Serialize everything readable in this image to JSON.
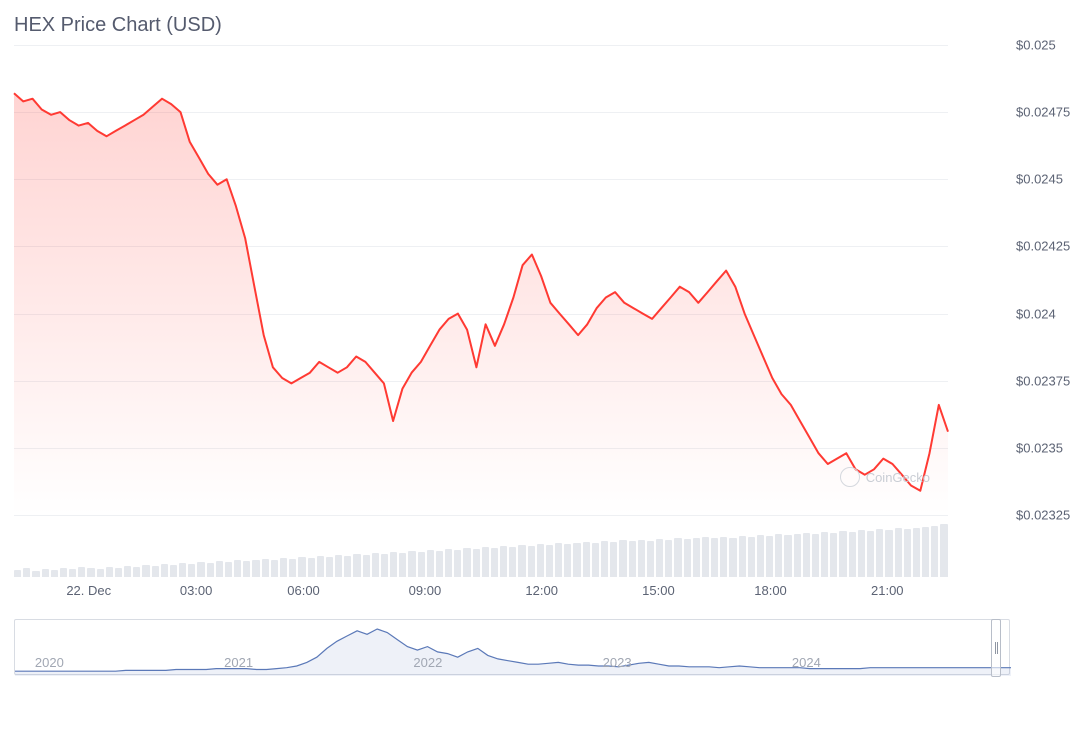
{
  "title": "HEX Price Chart (USD)",
  "watermark_text": "CoinGecko",
  "main_chart": {
    "type": "area",
    "line_color": "#ff3a33",
    "line_width": 2,
    "fill_top_color": "rgba(255,58,51,0.22)",
    "fill_bottom_color": "rgba(255,58,51,0.0)",
    "grid_color": "#eef0f3",
    "background_color": "#ffffff",
    "ylim": [
      0.02325,
      0.025
    ],
    "ytick_labels": [
      "$0.025",
      "$0.02475",
      "$0.0245",
      "$0.02425",
      "$0.024",
      "$0.02375",
      "$0.0235",
      "$0.02325"
    ],
    "ytick_values": [
      0.025,
      0.02475,
      0.0245,
      0.02425,
      0.024,
      0.02375,
      0.0235,
      0.02325
    ],
    "xtick_labels": [
      "22. Dec",
      "03:00",
      "06:00",
      "09:00",
      "12:00",
      "15:00",
      "18:00",
      "21:00"
    ],
    "xtick_positions": [
      0.08,
      0.195,
      0.31,
      0.44,
      0.565,
      0.69,
      0.81,
      0.935
    ],
    "series": [
      0.02482,
      0.02479,
      0.0248,
      0.02476,
      0.02474,
      0.02475,
      0.02472,
      0.0247,
      0.02471,
      0.02468,
      0.02466,
      0.02468,
      0.0247,
      0.02472,
      0.02474,
      0.02477,
      0.0248,
      0.02478,
      0.02475,
      0.02464,
      0.02458,
      0.02452,
      0.02448,
      0.0245,
      0.0244,
      0.02428,
      0.0241,
      0.02392,
      0.0238,
      0.02376,
      0.02374,
      0.02376,
      0.02378,
      0.02382,
      0.0238,
      0.02378,
      0.0238,
      0.02384,
      0.02382,
      0.02378,
      0.02374,
      0.0236,
      0.02372,
      0.02378,
      0.02382,
      0.02388,
      0.02394,
      0.02398,
      0.024,
      0.02394,
      0.0238,
      0.02396,
      0.02388,
      0.02396,
      0.02406,
      0.02418,
      0.02422,
      0.02414,
      0.02404,
      0.024,
      0.02396,
      0.02392,
      0.02396,
      0.02402,
      0.02406,
      0.02408,
      0.02404,
      0.02402,
      0.024,
      0.02398,
      0.02402,
      0.02406,
      0.0241,
      0.02408,
      0.02404,
      0.02408,
      0.02412,
      0.02416,
      0.0241,
      0.024,
      0.02392,
      0.02384,
      0.02376,
      0.0237,
      0.02366,
      0.0236,
      0.02354,
      0.02348,
      0.02344,
      0.02346,
      0.02348,
      0.02342,
      0.0234,
      0.02342,
      0.02346,
      0.02344,
      0.0234,
      0.02336,
      0.02334,
      0.02348,
      0.02366,
      0.02356
    ],
    "title_fontsize": 20,
    "label_fontsize": 13,
    "label_color": "#5c6374"
  },
  "volume_chart": {
    "type": "bar",
    "bar_color": "#e4e7ec",
    "values": [
      12,
      14,
      11,
      13,
      12,
      14,
      13,
      15,
      14,
      13,
      15,
      14,
      16,
      15,
      17,
      16,
      18,
      17,
      19,
      18,
      20,
      19,
      21,
      20,
      22,
      21,
      22,
      23,
      22,
      24,
      23,
      25,
      24,
      26,
      25,
      27,
      26,
      28,
      27,
      29,
      28,
      30,
      29,
      31,
      30,
      32,
      31,
      33,
      32,
      34,
      33,
      35,
      34,
      36,
      35,
      37,
      36,
      38,
      37,
      39,
      38,
      39,
      40,
      39,
      41,
      40,
      42,
      41,
      42,
      41,
      43,
      42,
      44,
      43,
      44,
      45,
      44,
      45,
      44,
      46,
      45,
      47,
      46,
      48,
      47,
      48,
      49,
      48,
      50,
      49,
      51,
      50,
      52,
      51,
      53,
      52,
      54,
      53,
      54,
      55,
      56,
      58
    ],
    "max_height_pct": 0.95,
    "min_height_pct": 0.1
  },
  "navigator": {
    "line_color": "#5b79b8",
    "years": [
      "2020",
      "2021",
      "2022",
      "2023",
      "2024"
    ],
    "year_positions": [
      0.02,
      0.21,
      0.4,
      0.59,
      0.78
    ],
    "handle_position": 0.985,
    "series": [
      2,
      2,
      2,
      2,
      2,
      2,
      2,
      2,
      2,
      2,
      2,
      3,
      3,
      3,
      3,
      3,
      4,
      4,
      4,
      4,
      5,
      5,
      5,
      5,
      4,
      4,
      5,
      6,
      8,
      12,
      18,
      28,
      36,
      42,
      48,
      44,
      50,
      46,
      38,
      30,
      26,
      30,
      24,
      22,
      18,
      24,
      28,
      20,
      16,
      14,
      12,
      10,
      10,
      11,
      12,
      10,
      9,
      9,
      8,
      8,
      7,
      9,
      11,
      12,
      10,
      8,
      8,
      7,
      7,
      7,
      6,
      7,
      8,
      7,
      6,
      6,
      6,
      6,
      6,
      5,
      5,
      5,
      5,
      5,
      5,
      6,
      6,
      6,
      6,
      6,
      6,
      6,
      6,
      6,
      6,
      6,
      6,
      6,
      6,
      6
    ],
    "max_val": 50
  }
}
